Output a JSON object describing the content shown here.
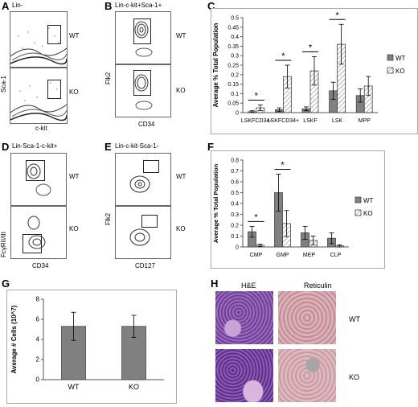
{
  "panels": {
    "A": {
      "letter": "A",
      "title": "Lin-",
      "wt": "WT",
      "ko": "KO",
      "xlabel": "c-kit",
      "ylabel": "Sca-1"
    },
    "B": {
      "letter": "B",
      "title": "Lin-c-kit+Sca-1+",
      "wt": "WT",
      "ko": "KO",
      "xlabel": "CD34",
      "ylabel": "Flk2"
    },
    "D": {
      "letter": "D",
      "title": "Lin-Sca-1-c-kit+",
      "wt": "WT",
      "ko": "KO",
      "xlabel": "CD34",
      "ylabel": "FcγRII/III"
    },
    "E": {
      "letter": "E",
      "title": "Lin-c-kit-Sca-1-",
      "wt": "WT",
      "ko": "KO",
      "xlabel": "CD127",
      "ylabel": "Flk2"
    },
    "C": {
      "letter": "C"
    },
    "F": {
      "letter": "F"
    },
    "G": {
      "letter": "G"
    },
    "H": {
      "letter": "H",
      "col1": "H&E",
      "col2": "Reticulin",
      "wt": "WT",
      "ko": "KO"
    }
  },
  "chart_data": [
    {
      "id": "C",
      "type": "bar",
      "categories": [
        "LSKFCD34-",
        "LSKFCD34+",
        "LSKF",
        "LSK",
        "MPP"
      ],
      "ylabel": "Average % Total Population",
      "ylim": [
        0,
        0.5
      ],
      "yticks": [
        "0",
        "0.05",
        "0.1",
        "0.15",
        "0.2",
        "0.25",
        "0.3",
        "0.35",
        "0.4",
        "0.45",
        "0.5"
      ],
      "legend": "right",
      "series": [
        {
          "name": "WT",
          "values": [
            0.005,
            0.015,
            0.02,
            0.115,
            0.09
          ],
          "errors": [
            0.005,
            0.01,
            0.01,
            0.045,
            0.035
          ]
        },
        {
          "name": "KO",
          "values": [
            0.025,
            0.19,
            0.22,
            0.36,
            0.14
          ],
          "errors": [
            0.015,
            0.06,
            0.075,
            0.105,
            0.05
          ]
        }
      ],
      "significance": [
        0,
        1,
        2,
        3
      ],
      "star": "*"
    },
    {
      "id": "F",
      "type": "bar",
      "categories": [
        "CMP",
        "GMP",
        "MEP",
        "CLP"
      ],
      "ylabel": "Average % Total Population",
      "ylim": [
        0,
        0.8
      ],
      "yticks": [
        "0",
        "0.1",
        "0.2",
        "0.3",
        "0.4",
        "0.5",
        "0.6",
        "0.7",
        "0.8"
      ],
      "legend": "right",
      "series": [
        {
          "name": "WT",
          "values": [
            0.14,
            0.5,
            0.13,
            0.08
          ],
          "errors": [
            0.05,
            0.17,
            0.06,
            0.05
          ]
        },
        {
          "name": "KO",
          "values": [
            0.015,
            0.215,
            0.06,
            0.01
          ],
          "errors": [
            0.01,
            0.12,
            0.04,
            0.01
          ]
        }
      ],
      "significance": [
        0,
        1
      ],
      "star": "*"
    },
    {
      "id": "G",
      "type": "bar",
      "categories": [
        "WT",
        "KO"
      ],
      "ylabel": "Average # Cells (10^7)",
      "ylim": [
        0,
        8
      ],
      "yticks": [
        "0",
        "2",
        "4",
        "6",
        "8"
      ],
      "series": [
        {
          "values": [
            5.3,
            5.3
          ],
          "errors": [
            1.4,
            1.1
          ]
        }
      ]
    }
  ],
  "colors": {
    "wt_bar": "#808080",
    "ko_bar": "#ffffff",
    "hatch": "#999999",
    "he_tissue": "#7a4d9c",
    "reticulin_tissue": "#d4a5ad"
  }
}
